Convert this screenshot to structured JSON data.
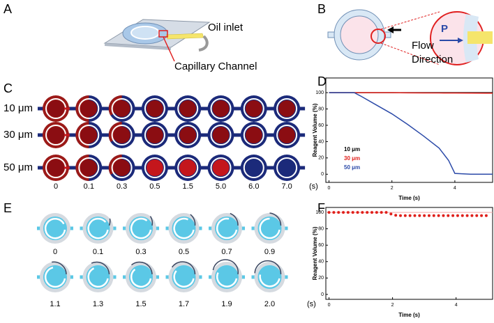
{
  "panel_labels": [
    "A",
    "B",
    "C",
    "D",
    "E",
    "F"
  ],
  "panel_a": {
    "labels": [
      "Oil inlet",
      "Capillary Channel"
    ]
  },
  "panel_b": {
    "labels": [
      "Flow",
      "Direction"
    ],
    "pressure": "P"
  },
  "panel_c": {
    "rows": [
      "10 μm",
      "30 μm",
      "50 μm"
    ],
    "times": [
      "0",
      "0.1",
      "0.3",
      "0.5",
      "1.5",
      "5.0",
      "6.0",
      "7.0"
    ],
    "unit": "(s)"
  },
  "panel_e": {
    "times": [
      "0",
      "0.1",
      "0.3",
      "0.5",
      "0.7",
      "0.9",
      "1.1",
      "1.3",
      "1.5",
      "1.7",
      "1.9",
      "2.0"
    ],
    "unit": "(s)"
  },
  "chart_data": [
    {
      "type": "line",
      "xlabel": "Time (s)",
      "ylabel": "Reagent Volume (%)",
      "x": [
        0,
        0.5,
        0.8,
        1,
        1.5,
        2,
        2.5,
        3,
        3.5,
        3.8,
        4,
        4.5,
        5,
        5.2
      ],
      "series": [
        {
          "name": "10 μm",
          "color": "#000000",
          "values": [
            100,
            100,
            100,
            100,
            100,
            100,
            100,
            100,
            100,
            100,
            100,
            100,
            100,
            100
          ]
        },
        {
          "name": "30 μm",
          "color": "#e0201b",
          "values": [
            100,
            100,
            100,
            100,
            100,
            100,
            99.8,
            99.7,
            99.6,
            99.5,
            99.5,
            99.4,
            99.3,
            99.3
          ]
        },
        {
          "name": "50 μm",
          "color": "#2b4aa8",
          "values": [
            100,
            100,
            100,
            96,
            85,
            74,
            61,
            47,
            32,
            17,
            1,
            0,
            0,
            0
          ]
        }
      ],
      "xlim": [
        -0.1,
        5.2
      ],
      "ylim": [
        -10,
        118
      ],
      "xticks": [
        0,
        2,
        4
      ],
      "yticks": [
        0,
        20,
        40,
        60,
        80,
        100
      ]
    },
    {
      "type": "scatter",
      "xlabel": "Time (s)",
      "ylabel": "Reagent Volume (%)",
      "x": [
        0,
        0.15,
        0.3,
        0.45,
        0.6,
        0.75,
        0.9,
        1.05,
        1.2,
        1.35,
        1.5,
        1.65,
        1.8,
        1.95,
        2.1,
        2.25,
        2.4,
        2.55,
        2.7,
        2.85,
        3,
        3.15,
        3.3,
        3.45,
        3.6,
        3.75,
        3.9,
        4.05,
        4.2,
        4.35,
        4.5,
        4.65,
        4.8,
        4.95
      ],
      "series": [
        {
          "color": "#e0201b",
          "values": [
            100,
            100,
            100,
            100,
            100,
            100,
            100,
            100,
            100,
            100,
            100,
            100,
            100,
            98,
            96.5,
            96,
            96,
            96,
            96,
            96,
            96,
            96,
            96,
            96,
            96,
            96,
            96,
            96,
            96,
            96,
            96,
            96,
            96,
            96
          ]
        }
      ],
      "hline": 100,
      "hline_color": "#f2a8a8",
      "xlim": [
        -0.1,
        5.15
      ],
      "ylim": [
        -6,
        106
      ],
      "xticks": [
        0,
        2,
        4
      ],
      "yticks": [
        0,
        20,
        40,
        60,
        80,
        100
      ]
    }
  ]
}
